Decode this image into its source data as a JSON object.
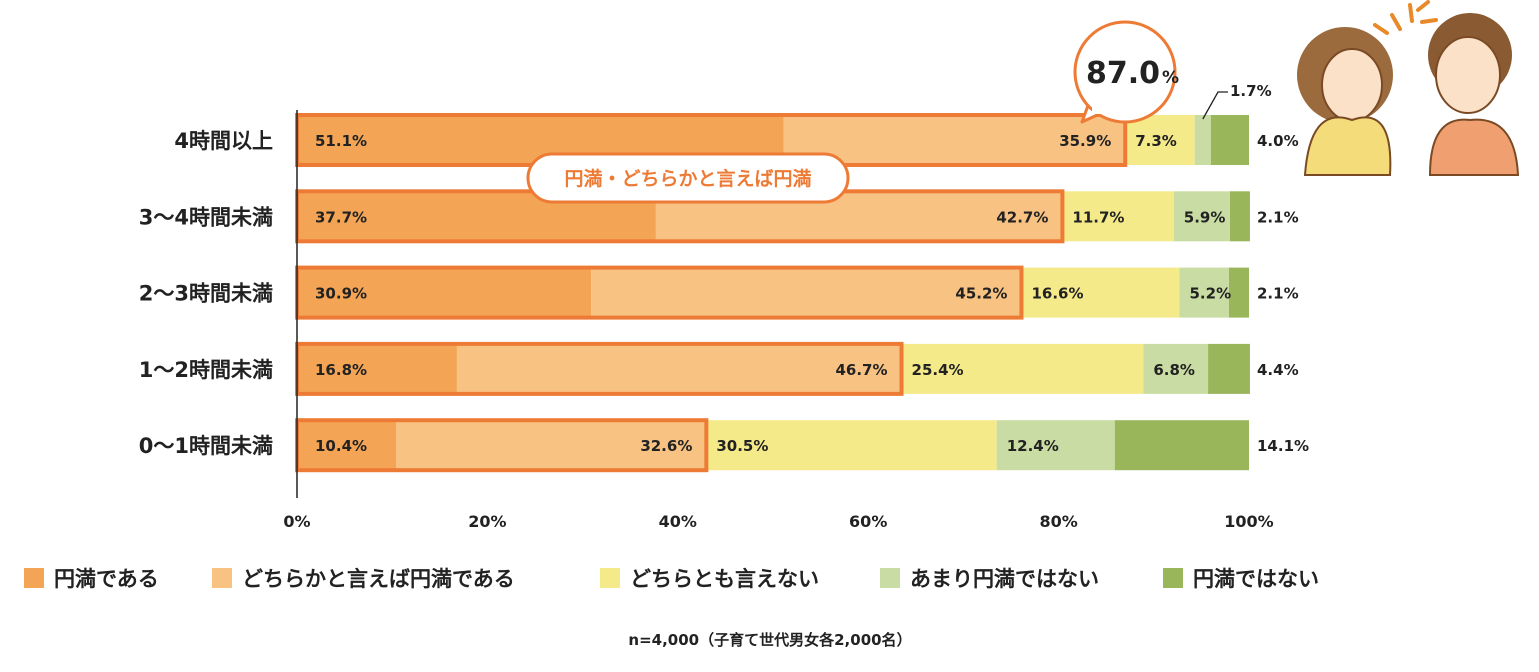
{
  "chart_data": {
    "type": "bar",
    "orientation": "horizontal",
    "stacked": true,
    "categories": [
      "4時間以上",
      "3〜4時間未満",
      "2〜3時間未満",
      "1〜2時間未満",
      "0〜1時間未満"
    ],
    "series": [
      {
        "name": "円満である",
        "color": "#F3A555",
        "values": [
          51.1,
          37.7,
          30.9,
          16.8,
          10.4
        ]
      },
      {
        "name": "どちらかと言えば円満である",
        "color": "#F8C283",
        "values": [
          35.9,
          42.7,
          45.2,
          46.7,
          32.6
        ]
      },
      {
        "name": "どちらとも言えない",
        "color": "#F5EA8A",
        "values": [
          7.3,
          11.7,
          16.6,
          25.4,
          30.5
        ]
      },
      {
        "name": "あまり円満ではない",
        "color": "#C9DCA3",
        "values": [
          1.7,
          5.9,
          5.2,
          6.8,
          12.4
        ]
      },
      {
        "name": "円満ではない",
        "color": "#99B65A",
        "values": [
          4.0,
          2.1,
          2.1,
          4.4,
          14.1
        ]
      }
    ],
    "xlim": [
      0,
      100
    ],
    "xticks": [
      "0%",
      "20%",
      "40%",
      "60%",
      "80%",
      "100%"
    ],
    "legend_position": "bottom",
    "highlight_color": "#EE7B35",
    "annotations": {
      "group_label": "円満・どちらかと言えば円満",
      "bubble_value": "87.0",
      "bubble_unit": "%"
    },
    "footnote": "n=4,000（子育て世代男女各2,000名）"
  }
}
